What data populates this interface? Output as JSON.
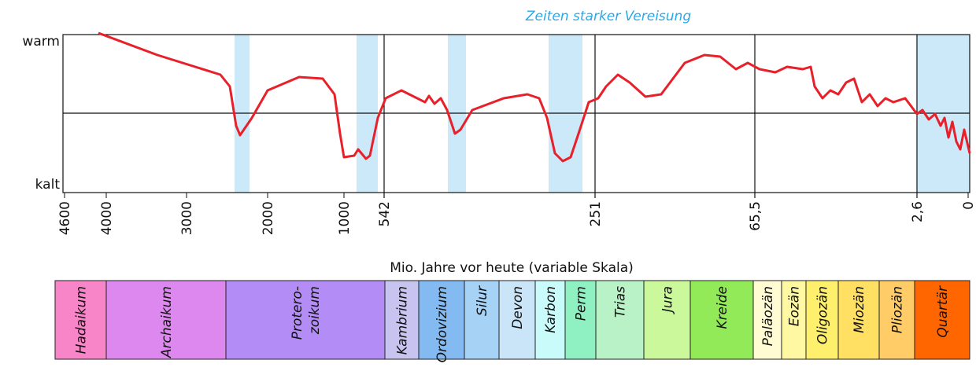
{
  "title": "Zeiten starker Vereisung",
  "y_labels": {
    "top": "warm",
    "bottom": "kalt"
  },
  "x_ticks": [
    "4600",
    "4000",
    "3000",
    "2000",
    "1000",
    "542",
    "251",
    "65,5",
    "2,6",
    "0"
  ],
  "x_axis_label": "Mio. Jahre vor heute (variable Skala)",
  "periods": [
    {
      "label": [
        "Hadaikum"
      ],
      "color": "#f985c9"
    },
    {
      "label": [
        "Archaikum"
      ],
      "color": "#dd88ef"
    },
    {
      "label": [
        "Protero-",
        "zoikum"
      ],
      "color": "#b38cf6"
    },
    {
      "label": [
        "Kambrium"
      ],
      "color": "#c8c4f0"
    },
    {
      "label": [
        "Ordovizium"
      ],
      "color": "#84baf2"
    },
    {
      "label": [
        "Silur"
      ],
      "color": "#a6d2f6"
    },
    {
      "label": [
        "Devon"
      ],
      "color": "#cae5f8"
    },
    {
      "label": [
        "Karbon"
      ],
      "color": "#c9fbfb"
    },
    {
      "label": [
        "Perm"
      ],
      "color": "#8ff0c2"
    },
    {
      "label": [
        "Trias"
      ],
      "color": "#b9f2c6"
    },
    {
      "label": [
        "Jura"
      ],
      "color": "#caf89b"
    },
    {
      "label": [
        "Kreide"
      ],
      "color": "#92ea58"
    },
    {
      "label": [
        "Paläozän"
      ],
      "color": "#fffbd2"
    },
    {
      "label": [
        "Eozän"
      ],
      "color": "#fff8a2"
    },
    {
      "label": [
        "Oligozän"
      ],
      "color": "#fef06c"
    },
    {
      "label": [
        "Miozän"
      ],
      "color": "#ffe062"
    },
    {
      "label": [
        "Pliozän"
      ],
      "color": "#ffcc68"
    },
    {
      "label": [
        "Quartär"
      ],
      "color": "#ff6600"
    }
  ]
}
